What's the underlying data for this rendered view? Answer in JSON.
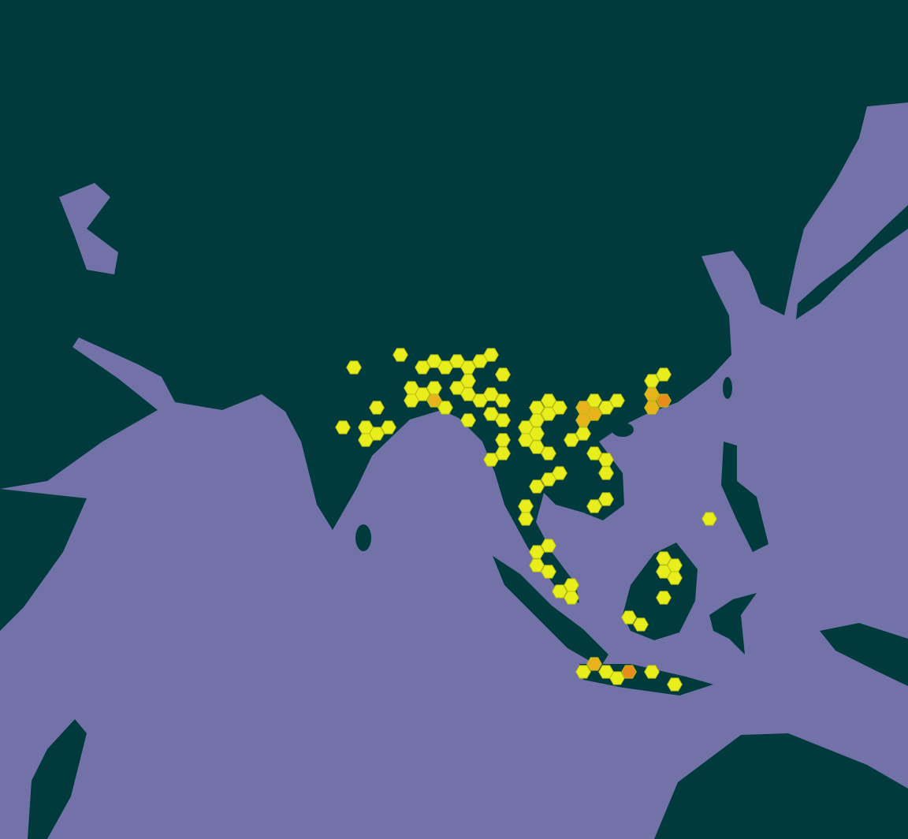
{
  "map": {
    "colors": {
      "land": "#003a3d",
      "sea": "#7272a8",
      "low": "#e8ee1c",
      "mid": "#e8b21c",
      "high": "#e88c1c",
      "hex_stroke": "#b8be10"
    },
    "hexbins": [
      [
        449,
        466,
        0
      ],
      [
        508,
        450,
        0
      ],
      [
        536,
        466,
        0
      ],
      [
        551,
        458,
        0
      ],
      [
        565,
        466,
        0
      ],
      [
        580,
        458,
        0
      ],
      [
        594,
        466,
        0
      ],
      [
        609,
        458,
        0
      ],
      [
        623,
        450,
        0
      ],
      [
        638,
        475,
        0
      ],
      [
        594,
        483,
        0
      ],
      [
        580,
        492,
        0
      ],
      [
        594,
        500,
        0
      ],
      [
        609,
        508,
        0
      ],
      [
        623,
        500,
        0
      ],
      [
        638,
        508,
        0
      ],
      [
        623,
        525,
        0
      ],
      [
        638,
        533,
        0
      ],
      [
        522,
        492,
        0
      ],
      [
        536,
        500,
        0
      ],
      [
        551,
        492,
        0
      ],
      [
        522,
        508,
        0
      ],
      [
        551,
        508,
        1
      ],
      [
        565,
        517,
        0
      ],
      [
        478,
        517,
        0
      ],
      [
        435,
        542,
        0
      ],
      [
        464,
        542,
        0
      ],
      [
        478,
        550,
        0
      ],
      [
        493,
        542,
        0
      ],
      [
        464,
        558,
        0
      ],
      [
        594,
        533,
        0
      ],
      [
        638,
        558,
        0
      ],
      [
        638,
        575,
        0
      ],
      [
        623,
        583,
        0
      ],
      [
        681,
        517,
        0
      ],
      [
        696,
        508,
        0
      ],
      [
        710,
        517,
        0
      ],
      [
        681,
        533,
        0
      ],
      [
        696,
        525,
        0
      ],
      [
        667,
        542,
        0
      ],
      [
        681,
        550,
        0
      ],
      [
        667,
        558,
        0
      ],
      [
        681,
        567,
        0
      ],
      [
        696,
        575,
        0
      ],
      [
        740,
        517,
        1
      ],
      [
        754,
        508,
        0
      ],
      [
        769,
        517,
        0
      ],
      [
        783,
        508,
        0
      ],
      [
        754,
        525,
        1
      ],
      [
        740,
        533,
        1
      ],
      [
        740,
        550,
        0
      ],
      [
        725,
        558,
        0
      ],
      [
        754,
        575,
        0
      ],
      [
        769,
        583,
        0
      ],
      [
        769,
        600,
        0
      ],
      [
        710,
        600,
        0
      ],
      [
        696,
        608,
        0
      ],
      [
        681,
        617,
        0
      ],
      [
        667,
        642,
        0
      ],
      [
        667,
        658,
        0
      ],
      [
        754,
        642,
        0
      ],
      [
        769,
        633,
        0
      ],
      [
        827,
        483,
        0
      ],
      [
        842,
        475,
        0
      ],
      [
        827,
        500,
        1
      ],
      [
        842,
        508,
        2
      ],
      [
        827,
        517,
        1
      ],
      [
        696,
        692,
        0
      ],
      [
        681,
        700,
        0
      ],
      [
        681,
        717,
        0
      ],
      [
        696,
        725,
        0
      ],
      [
        710,
        750,
        0
      ],
      [
        725,
        742,
        0
      ],
      [
        725,
        758,
        0
      ],
      [
        842,
        708,
        0
      ],
      [
        856,
        717,
        0
      ],
      [
        842,
        725,
        0
      ],
      [
        856,
        733,
        0
      ],
      [
        842,
        758,
        0
      ],
      [
        798,
        783,
        0
      ],
      [
        813,
        792,
        0
      ],
      [
        900,
        658,
        0
      ],
      [
        740,
        852,
        0
      ],
      [
        754,
        842,
        1
      ],
      [
        769,
        852,
        0
      ],
      [
        783,
        860,
        0
      ],
      [
        798,
        852,
        2
      ],
      [
        827,
        852,
        0
      ],
      [
        856,
        868,
        0
      ]
    ]
  }
}
